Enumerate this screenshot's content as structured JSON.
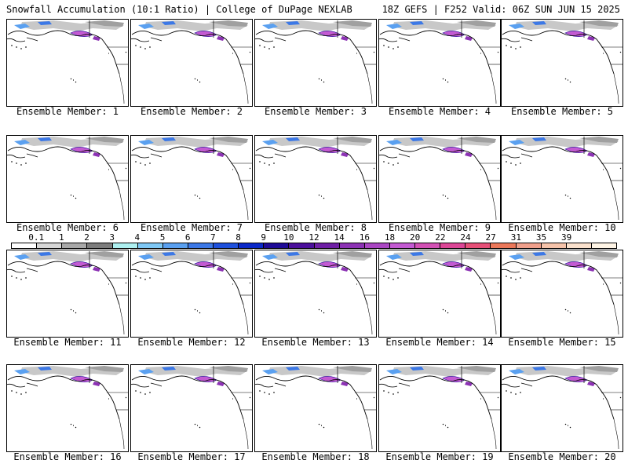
{
  "header": {
    "left": "Snowfall Accumulation (10:1 Ratio) | College of DuPage NEXLAB",
    "right": "18Z GEFS | F252 Valid: 06Z SUN JUN 15 2025"
  },
  "panels": [
    {
      "label": "Ensemble Member: 1"
    },
    {
      "label": "Ensemble Member: 2"
    },
    {
      "label": "Ensemble Member: 3"
    },
    {
      "label": "Ensemble Member: 4"
    },
    {
      "label": "Ensemble Member: 5"
    },
    {
      "label": "Ensemble Member: 6"
    },
    {
      "label": "Ensemble Member: 7"
    },
    {
      "label": "Ensemble Member: 8"
    },
    {
      "label": "Ensemble Member: 9"
    },
    {
      "label": "Ensemble Member: 10"
    },
    {
      "label": "Ensemble Member: 11"
    },
    {
      "label": "Ensemble Member: 12"
    },
    {
      "label": "Ensemble Member: 13"
    },
    {
      "label": "Ensemble Member: 14"
    },
    {
      "label": "Ensemble Member: 15"
    },
    {
      "label": "Ensemble Member: 16"
    },
    {
      "label": "Ensemble Member: 17"
    },
    {
      "label": "Ensemble Member: 18"
    },
    {
      "label": "Ensemble Member: 19"
    },
    {
      "label": "Ensemble Member: 20"
    }
  ],
  "colorbar": {
    "labels": [
      "0.1",
      "1",
      "2",
      "3",
      "4",
      "5",
      "6",
      "7",
      "8",
      "9",
      "10",
      "12",
      "14",
      "16",
      "18",
      "20",
      "22",
      "24",
      "27",
      "31",
      "35",
      "39"
    ],
    "colors": [
      "#ffffff",
      "#d6d6d6",
      "#a8a8a8",
      "#7d7d7d",
      "#aef0f0",
      "#7fc8f5",
      "#5aa0f0",
      "#3c78e6",
      "#1e50dc",
      "#0a28c8",
      "#1e0a96",
      "#4b0f9b",
      "#6e1ea5",
      "#8c32b4",
      "#aa46c3",
      "#c35ad2",
      "#d250b4",
      "#dc4696",
      "#e65078",
      "#eb785a",
      "#f0a08c",
      "#f5c3aa",
      "#fae1cd",
      "#fff5e6"
    ]
  }
}
